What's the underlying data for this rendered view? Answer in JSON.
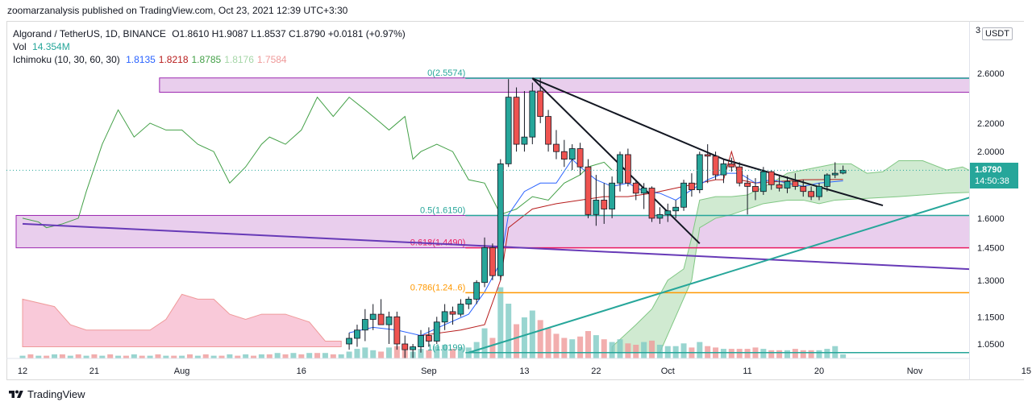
{
  "header": {
    "text": "zoomarzanalysis published on TradingView.com, Oct 23, 2021 12:39 UTC+3:30"
  },
  "legend": {
    "symbol": "Algorand / TetherUS, 1D, BINANCE",
    "ohlc": "O1.8610 H1.9087 L1.8537 C1.8790 +0.0181 (+0.97%)",
    "vol_label": "Vol",
    "vol_value": "14.354M",
    "ichi_label": "Ichimoku (10, 30, 60, 30)",
    "ichi_values": [
      {
        "value": "1.8135",
        "color": "#2962ff"
      },
      {
        "value": "1.8218",
        "color": "#b71c1c"
      },
      {
        "value": "1.8785",
        "color": "#43a047"
      },
      {
        "value": "1.8176",
        "color": "#a5d6a7"
      },
      {
        "value": "1.7584",
        "color": "#ef9a9a"
      }
    ]
  },
  "currency_badge": "USDT",
  "axis_top_glyph": "3",
  "price_tag": {
    "price": "1.8790",
    "countdown": "14:50:38",
    "color": "#26a69a"
  },
  "footer": {
    "brand": "TradingView"
  },
  "chart_data": {
    "type": "candlestick",
    "title": "Algorand / TetherUS, 1D, BINANCE",
    "y_axis": {
      "scale": "log",
      "ticks": [
        2.6,
        2.2,
        2.0,
        1.6,
        1.45,
        1.3,
        1.15,
        1.05
      ],
      "tick_labels": [
        "2.6000",
        "2.2000",
        "2.0000",
        "1.6000",
        "1.4500",
        "1.3000",
        "1.1500",
        "1.0500"
      ]
    },
    "x_axis": {
      "ticks": [
        {
          "day": 0,
          "label": "12"
        },
        {
          "day": 9,
          "label": "21"
        },
        {
          "day": 20,
          "label": "Aug"
        },
        {
          "day": 35,
          "label": "16"
        },
        {
          "day": 51,
          "label": "Sep"
        },
        {
          "day": 63,
          "label": "13"
        },
        {
          "day": 72,
          "label": "22"
        },
        {
          "day": 81,
          "label": "Oct"
        },
        {
          "day": 91,
          "label": "11"
        },
        {
          "day": 100,
          "label": "20"
        },
        {
          "day": 112,
          "label": "Nov"
        },
        {
          "day": 126,
          "label": "15"
        }
      ]
    },
    "last_candle_day": 103,
    "candles": [
      [
        41,
        1.05,
        1.09,
        1.03,
        1.07
      ],
      [
        42,
        1.07,
        1.12,
        1.04,
        1.1
      ],
      [
        43,
        1.1,
        1.18,
        1.06,
        1.14
      ],
      [
        44,
        1.14,
        1.2,
        1.1,
        1.16
      ],
      [
        45,
        1.16,
        1.22,
        1.12,
        1.12
      ],
      [
        46,
        1.12,
        1.17,
        1.05,
        1.15
      ],
      [
        47,
        1.15,
        1.17,
        1.03,
        1.05
      ],
      [
        48,
        1.05,
        1.08,
        1.0,
        1.03
      ],
      [
        49,
        1.03,
        1.05,
        1.0,
        1.04
      ],
      [
        50,
        1.04,
        1.1,
        1.02,
        1.08
      ],
      [
        51,
        1.08,
        1.11,
        1.04,
        1.06
      ],
      [
        52,
        1.06,
        1.15,
        1.05,
        1.13
      ],
      [
        53,
        1.13,
        1.2,
        1.1,
        1.17
      ],
      [
        54,
        1.17,
        1.19,
        1.12,
        1.16
      ],
      [
        55,
        1.16,
        1.22,
        1.15,
        1.2
      ],
      [
        56,
        1.2,
        1.23,
        1.18,
        1.22
      ],
      [
        57,
        1.22,
        1.3,
        1.2,
        1.29
      ],
      [
        58,
        1.29,
        1.5,
        1.27,
        1.45
      ],
      [
        59,
        1.45,
        1.47,
        1.3,
        1.32
      ],
      [
        60,
        1.32,
        1.95,
        1.3,
        1.92
      ],
      [
        61,
        1.92,
        2.55,
        1.9,
        2.4
      ],
      [
        62,
        2.4,
        2.48,
        2.0,
        2.05
      ],
      [
        63,
        2.05,
        2.45,
        2.0,
        2.1
      ],
      [
        64,
        2.1,
        2.52,
        2.05,
        2.45
      ],
      [
        65,
        2.45,
        2.56,
        2.2,
        2.25
      ],
      [
        66,
        2.25,
        2.3,
        2.0,
        2.05
      ],
      [
        67,
        2.05,
        2.15,
        1.95,
        2.0
      ],
      [
        68,
        2.0,
        2.08,
        1.9,
        1.95
      ],
      [
        69,
        1.95,
        2.05,
        1.88,
        2.02
      ],
      [
        70,
        2.02,
        2.06,
        1.85,
        1.9
      ],
      [
        71,
        1.9,
        1.95,
        1.6,
        1.62
      ],
      [
        72,
        1.62,
        1.85,
        1.56,
        1.7
      ],
      [
        73,
        1.7,
        1.8,
        1.57,
        1.65
      ],
      [
        74,
        1.65,
        1.84,
        1.6,
        1.8
      ],
      [
        75,
        1.8,
        2.0,
        1.75,
        1.98
      ],
      [
        76,
        1.98,
        2.02,
        1.78,
        1.8
      ],
      [
        77,
        1.8,
        1.82,
        1.7,
        1.74
      ],
      [
        78,
        1.74,
        1.8,
        1.65,
        1.77
      ],
      [
        79,
        1.77,
        1.78,
        1.58,
        1.6
      ],
      [
        80,
        1.6,
        1.66,
        1.57,
        1.62
      ],
      [
        81,
        1.62,
        1.68,
        1.58,
        1.64
      ],
      [
        82,
        1.64,
        1.7,
        1.6,
        1.66
      ],
      [
        83,
        1.66,
        1.82,
        1.64,
        1.8
      ],
      [
        84,
        1.8,
        1.86,
        1.72,
        1.76
      ],
      [
        85,
        1.76,
        2.0,
        1.74,
        1.98
      ],
      [
        86,
        1.98,
        2.05,
        1.8,
        1.97
      ],
      [
        87,
        1.97,
        2.0,
        1.82,
        1.85
      ],
      [
        88,
        1.85,
        1.95,
        1.8,
        1.92
      ],
      [
        89,
        1.92,
        1.96,
        1.87,
        1.9
      ],
      [
        90,
        1.9,
        1.93,
        1.78,
        1.8
      ],
      [
        91,
        1.8,
        1.85,
        1.62,
        1.78
      ],
      [
        92,
        1.78,
        1.83,
        1.7,
        1.75
      ],
      [
        93,
        1.75,
        1.9,
        1.73,
        1.87
      ],
      [
        94,
        1.87,
        1.88,
        1.76,
        1.79
      ],
      [
        95,
        1.79,
        1.85,
        1.75,
        1.77
      ],
      [
        96,
        1.77,
        1.84,
        1.74,
        1.81
      ],
      [
        97,
        1.81,
        1.86,
        1.76,
        1.78
      ],
      [
        98,
        1.78,
        1.82,
        1.72,
        1.75
      ],
      [
        99,
        1.75,
        1.78,
        1.7,
        1.72
      ],
      [
        100,
        1.72,
        1.8,
        1.7,
        1.78
      ],
      [
        101,
        1.78,
        1.86,
        1.75,
        1.85
      ],
      [
        102,
        1.85,
        1.93,
        1.83,
        1.86
      ],
      [
        103,
        1.861,
        1.9087,
        1.8537,
        1.879
      ]
    ],
    "lagging_span": [
      [
        0,
        1.6
      ],
      [
        2,
        1.58
      ],
      [
        3,
        1.55
      ],
      [
        5,
        1.57
      ],
      [
        7,
        1.6
      ],
      [
        8,
        1.75
      ],
      [
        10,
        2.05
      ],
      [
        12,
        2.3
      ],
      [
        14,
        2.1
      ],
      [
        16,
        2.2
      ],
      [
        18,
        2.15
      ],
      [
        20,
        2.15
      ],
      [
        22,
        2.05
      ],
      [
        24,
        2.0
      ],
      [
        26,
        1.8
      ],
      [
        28,
        1.9
      ],
      [
        30,
        2.05
      ],
      [
        31,
        2.1
      ],
      [
        33,
        2.05
      ],
      [
        35,
        2.15
      ],
      [
        37,
        2.4
      ],
      [
        39,
        2.25
      ],
      [
        41,
        2.4
      ],
      [
        43,
        2.3
      ],
      [
        45,
        2.2
      ],
      [
        46,
        2.15
      ],
      [
        48,
        2.25
      ],
      [
        49,
        1.95
      ],
      [
        50,
        2.0
      ],
      [
        52,
        2.05
      ],
      [
        54,
        2.0
      ],
      [
        56,
        1.82
      ],
      [
        58,
        1.8
      ],
      [
        60,
        1.62
      ],
      [
        62,
        1.65
      ],
      [
        64,
        1.72
      ],
      [
        66,
        1.7
      ],
      [
        68,
        1.8
      ],
      [
        70,
        1.85
      ],
      [
        71,
        1.9
      ],
      [
        73,
        1.93
      ],
      [
        74,
        1.88
      ]
    ],
    "tenkan": [
      [
        41,
        1.09
      ],
      [
        44,
        1.11
      ],
      [
        47,
        1.1
      ],
      [
        50,
        1.08
      ],
      [
        53,
        1.12
      ],
      [
        56,
        1.16
      ],
      [
        58,
        1.25
      ],
      [
        60,
        1.38
      ],
      [
        61,
        1.62
      ],
      [
        63,
        1.75
      ],
      [
        65,
        1.8
      ],
      [
        67,
        1.8
      ],
      [
        69,
        1.95
      ],
      [
        70,
        1.9
      ],
      [
        72,
        1.82
      ],
      [
        74,
        1.78
      ],
      [
        76,
        1.8
      ],
      [
        78,
        1.75
      ],
      [
        80,
        1.74
      ],
      [
        82,
        1.7
      ],
      [
        84,
        1.76
      ],
      [
        86,
        1.82
      ],
      [
        88,
        1.86
      ],
      [
        90,
        1.86
      ],
      [
        92,
        1.8
      ],
      [
        94,
        1.82
      ],
      [
        96,
        1.8
      ],
      [
        98,
        1.78
      ],
      [
        100,
        1.8
      ],
      [
        103,
        1.8135
      ]
    ],
    "kijun": [
      [
        50,
        1.08
      ],
      [
        55,
        1.1
      ],
      [
        58,
        1.12
      ],
      [
        60,
        1.3
      ],
      [
        61,
        1.55
      ],
      [
        64,
        1.65
      ],
      [
        67,
        1.68
      ],
      [
        70,
        1.7
      ],
      [
        73,
        1.72
      ],
      [
        76,
        1.72
      ],
      [
        79,
        1.74
      ],
      [
        81,
        1.76
      ],
      [
        83,
        1.78
      ],
      [
        85,
        1.8
      ],
      [
        87,
        1.82
      ],
      [
        88,
        1.82
      ],
      [
        89,
        2.0
      ],
      [
        90,
        1.82
      ],
      [
        92,
        1.8
      ],
      [
        95,
        1.81
      ],
      [
        98,
        1.82
      ],
      [
        103,
        1.8218
      ]
    ],
    "cloud_pink": [
      [
        0,
        1.22
      ],
      [
        4,
        1.19
      ],
      [
        6,
        1.12
      ],
      [
        8,
        1.1
      ],
      [
        12,
        1.1
      ],
      [
        16,
        1.1
      ],
      [
        18,
        1.14
      ],
      [
        20,
        1.24
      ],
      [
        22,
        1.22
      ],
      [
        24,
        1.22
      ],
      [
        26,
        1.16
      ],
      [
        28,
        1.14
      ],
      [
        30,
        1.16
      ],
      [
        33,
        1.16
      ],
      [
        36,
        1.13
      ],
      [
        38,
        1.06
      ],
      [
        40,
        1.06
      ]
    ],
    "cloud_pink_lower": [
      [
        0,
        1.04
      ],
      [
        40,
        1.04
      ]
    ],
    "cloud_green_a": [
      [
        74,
        1.04
      ],
      [
        77,
        1.12
      ],
      [
        79,
        1.18
      ],
      [
        81,
        1.3
      ],
      [
        83,
        1.35
      ],
      [
        84,
        1.5
      ],
      [
        85,
        1.7
      ],
      [
        87,
        1.72
      ],
      [
        89,
        1.72
      ],
      [
        91,
        1.73
      ],
      [
        94,
        1.8
      ],
      [
        96,
        1.86
      ],
      [
        98,
        1.88
      ],
      [
        100,
        1.9
      ],
      [
        102,
        1.92
      ],
      [
        104,
        1.92
      ],
      [
        106,
        1.86
      ],
      [
        108,
        1.87
      ],
      [
        110,
        1.94
      ],
      [
        113,
        1.94
      ],
      [
        116,
        1.88
      ],
      [
        118,
        1.9
      ],
      [
        120,
        1.85
      ],
      [
        122,
        1.82
      ],
      [
        125,
        1.78
      ],
      [
        127,
        1.76
      ],
      [
        130,
        1.75
      ]
    ],
    "cloud_green_b": [
      [
        74,
        1.02
      ],
      [
        80,
        1.02
      ],
      [
        84,
        1.3
      ],
      [
        85,
        1.55
      ],
      [
        87,
        1.6
      ],
      [
        89,
        1.62
      ],
      [
        93,
        1.68
      ],
      [
        96,
        1.7
      ],
      [
        98,
        1.7
      ],
      [
        100,
        1.68
      ],
      [
        102,
        1.7
      ],
      [
        106,
        1.71
      ],
      [
        110,
        1.72
      ],
      [
        116,
        1.74
      ],
      [
        122,
        1.75
      ],
      [
        130,
        1.75
      ]
    ],
    "volume": [
      [
        0,
        2
      ],
      [
        1,
        3
      ],
      [
        2,
        2
      ],
      [
        3,
        2
      ],
      [
        4,
        3
      ],
      [
        5,
        3
      ],
      [
        6,
        2
      ],
      [
        7,
        3
      ],
      [
        8,
        2
      ],
      [
        9,
        3
      ],
      [
        10,
        2
      ],
      [
        11,
        3
      ],
      [
        12,
        2
      ],
      [
        13,
        2
      ],
      [
        14,
        3
      ],
      [
        15,
        2
      ],
      [
        16,
        2
      ],
      [
        17,
        3
      ],
      [
        18,
        2
      ],
      [
        19,
        2
      ],
      [
        20,
        2
      ],
      [
        21,
        3
      ],
      [
        22,
        2
      ],
      [
        23,
        3
      ],
      [
        24,
        2
      ],
      [
        25,
        2
      ],
      [
        26,
        3
      ],
      [
        27,
        2
      ],
      [
        28,
        3
      ],
      [
        29,
        2
      ],
      [
        30,
        3
      ],
      [
        31,
        3
      ],
      [
        32,
        4
      ],
      [
        33,
        3
      ],
      [
        34,
        4
      ],
      [
        35,
        3
      ],
      [
        36,
        4
      ],
      [
        37,
        4
      ],
      [
        38,
        4
      ],
      [
        39,
        3
      ],
      [
        40,
        3
      ],
      [
        41,
        5
      ],
      [
        42,
        7
      ],
      [
        43,
        8
      ],
      [
        44,
        6
      ],
      [
        45,
        5
      ],
      [
        46,
        8
      ],
      [
        47,
        9
      ],
      [
        48,
        6
      ],
      [
        49,
        5
      ],
      [
        50,
        7
      ],
      [
        51,
        6
      ],
      [
        52,
        9
      ],
      [
        53,
        10
      ],
      [
        54,
        7
      ],
      [
        55,
        8
      ],
      [
        56,
        8
      ],
      [
        57,
        12
      ],
      [
        58,
        22
      ],
      [
        59,
        15
      ],
      [
        60,
        52
      ],
      [
        61,
        40
      ],
      [
        62,
        25
      ],
      [
        63,
        30
      ],
      [
        64,
        35
      ],
      [
        65,
        28
      ],
      [
        66,
        22
      ],
      [
        67,
        18
      ],
      [
        68,
        15
      ],
      [
        69,
        14
      ],
      [
        70,
        16
      ],
      [
        71,
        20
      ],
      [
        72,
        17
      ],
      [
        73,
        14
      ],
      [
        74,
        12
      ],
      [
        75,
        14
      ],
      [
        76,
        11
      ],
      [
        77,
        10
      ],
      [
        78,
        12
      ],
      [
        79,
        13
      ],
      [
        80,
        10
      ],
      [
        81,
        9
      ],
      [
        82,
        9
      ],
      [
        83,
        11
      ],
      [
        84,
        8
      ],
      [
        85,
        12
      ],
      [
        86,
        9
      ],
      [
        87,
        8
      ],
      [
        88,
        7
      ],
      [
        89,
        7
      ],
      [
        90,
        7
      ],
      [
        91,
        7
      ],
      [
        92,
        8
      ],
      [
        93,
        7
      ],
      [
        94,
        6
      ],
      [
        95,
        6
      ],
      [
        96,
        6
      ],
      [
        97,
        7
      ],
      [
        98,
        6
      ],
      [
        99,
        6
      ],
      [
        100,
        6
      ],
      [
        101,
        7
      ],
      [
        102,
        9
      ],
      [
        103,
        3
      ]
    ],
    "horizontal_levels": [
      {
        "label": "0(2.5574)",
        "price": 2.5574,
        "color": "#26a69a"
      },
      {
        "label": "0.5(1.6150)",
        "price": 1.615,
        "color": "#26a69a"
      },
      {
        "label": "0.618(1.4490)",
        "price": 1.449,
        "color": "#e91e63"
      },
      {
        "label": "0.786(1.24..6)",
        "price": 1.2466,
        "color": "#ff9800"
      },
      {
        "label": "1(1.0199)",
        "price": 1.0199,
        "color": "#26a69a"
      }
    ],
    "zones": [
      {
        "top": 2.56,
        "bottom": 2.44,
        "start_day": 18,
        "color": "#ce93d8"
      },
      {
        "top": 1.615,
        "bottom": 1.449,
        "start_day": 0,
        "color": "#ce93d8"
      }
    ],
    "trendlines": [
      {
        "from": [
          64,
          2.557
        ],
        "to": [
          88,
          1.95
        ],
        "color": "#131722"
      },
      {
        "from": [
          88,
          1.95
        ],
        "to": [
          108,
          1.67
        ],
        "color": "#131722"
      },
      {
        "from": [
          64,
          2.557
        ],
        "to": [
          85,
          1.47
        ],
        "color": "#131722"
      },
      {
        "from": [
          0,
          1.57
        ],
        "to": [
          130,
          1.33
        ],
        "color": "#673ab7"
      },
      {
        "from": [
          56,
          1.02
        ],
        "to": [
          130,
          1.88
        ],
        "color": "#26a69a"
      }
    ],
    "last_price": 1.879
  }
}
